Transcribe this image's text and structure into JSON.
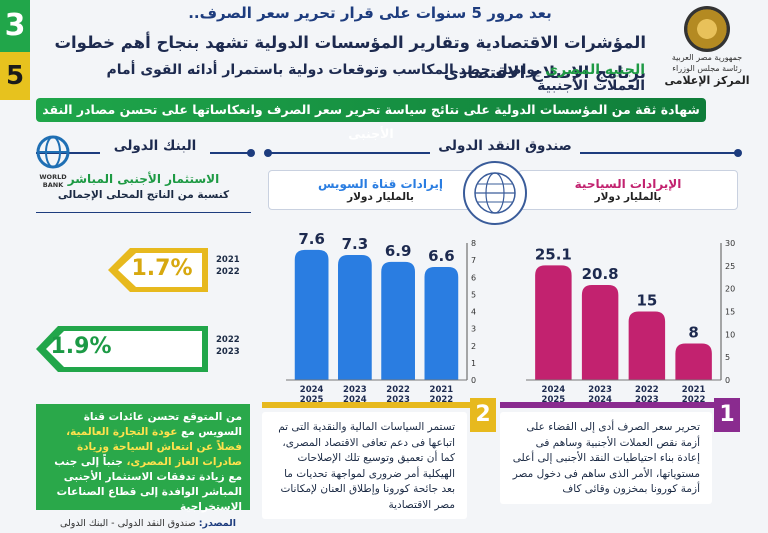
{
  "page_numbers": {
    "top": "3",
    "bottom": "5"
  },
  "colors": {
    "green": "#21a64a",
    "yellow": "#e7c21e",
    "navy": "#1d3c7e",
    "pink": "#c2226f",
    "blue": "#2a7de1",
    "purple": "#8a2b8f"
  },
  "header": {
    "kicker": "بعد مرور 5 سنوات على قرار تحرير سعر الصرف..",
    "headline": "المؤشرات الاقتصادية وتقارير المؤسسات الدولية تشهد بنجاح أهم خطوات برنامج الإصلاح الاقتصادى",
    "sub_green": "الجنيه المصرى",
    "sub_rest": " يواصل حصد المكاسب وتوقعات دولية باستمرار أدائه القوى أمام العملات الأجنبية",
    "banner": "شهادة ثقة من المؤسسات الدولية على نتائج سياسة تحرير سعر الصرف وانعكاساتها على تحسن مصادر النقد الأجنبى"
  },
  "logo": {
    "line1": "جمهورية مصر العربية",
    "line2": "رئاسة مجلس الوزراء",
    "line3": "المركز الإعلامى"
  },
  "sections": {
    "imf": "صندوق النقد الدولى",
    "world_bank": "البنك الدولى",
    "world_bank_logo": "WORLD BANK"
  },
  "chart_data": [
    {
      "type": "bar",
      "title": "الإيرادات السياحية",
      "subtitle": "بالمليار دولار",
      "categories": [
        "2021\n2022",
        "2022\n2023",
        "2023\n2024",
        "2024\n2025"
      ],
      "values": [
        8,
        15,
        20.8,
        25.1
      ],
      "value_labels": [
        "8",
        "15",
        "20.8",
        "25.1"
      ],
      "ylim": [
        0,
        30
      ],
      "yticks": [
        0,
        5,
        10,
        15,
        20,
        25,
        30
      ],
      "color": "#c2226f"
    },
    {
      "type": "bar",
      "title": "إيرادات قناة السويس",
      "subtitle": "بالمليار دولار",
      "categories": [
        "2021\n2022",
        "2022\n2023",
        "2023\n2024",
        "2024\n2025"
      ],
      "values": [
        6.6,
        6.9,
        7.3,
        7.6
      ],
      "value_labels": [
        "6.6",
        "6.9",
        "7.3",
        "7.6"
      ],
      "ylim": [
        0,
        8
      ],
      "yticks": [
        0,
        1,
        2,
        3,
        4,
        5,
        6,
        7,
        8
      ],
      "color": "#2a7de1"
    }
  ],
  "world_bank": {
    "title": "الاستثمار الأجنبى المباشر",
    "subtitle": "كنسبة من الناتج المحلى الإجمالى",
    "items": [
      {
        "years": [
          "2021",
          "2022"
        ],
        "value": "1.7%",
        "color": "#e7b91e"
      },
      {
        "years": [
          "2022",
          "2023"
        ],
        "value": "1.9%",
        "color": "#21a64a"
      }
    ]
  },
  "boxes": [
    {
      "num": "1",
      "text": "تحرير سعر الصرف أدى إلى القضاء على أزمة نقص العملات الأجنبية وساهم فى إعادة بناء احتياطيات النقد الأجنبى إلى أعلى مستوياتها، الأمر الذى ساهم فى دخول مصر أزمة كورونا بمخزون وقائى كاف"
    },
    {
      "num": "2",
      "text": "تستمر السياسات المالية والنقدية التى تم اتباعها فى دعم تعافى الاقتصاد المصرى، كما أن تعميق وتوسيع تلك الإصلاحات الهيكلية أمر ضرورى لمواجهة تحديات ما بعد جائحة كورونا وإطلاق العنان لإمكانات مصر الاقتصادية"
    }
  ],
  "green_note": {
    "p1": "من المتوقع تحسن عائدات قناة السويس مع ",
    "y1": "عودة التجارة العالمية، فضلاً عن انتعاش السياحة وزيادة صادرات الغاز المصرى،",
    "p2": " جنباً إلى جنب مع زيادة تدفقات الاستثمار الأجنبى المباشر الوافدة إلى قطاع الصناعات الاستخراجية"
  },
  "source": {
    "label": "المصدر:",
    "text": " صندوق النقد الدولى - البنك الدولى"
  }
}
